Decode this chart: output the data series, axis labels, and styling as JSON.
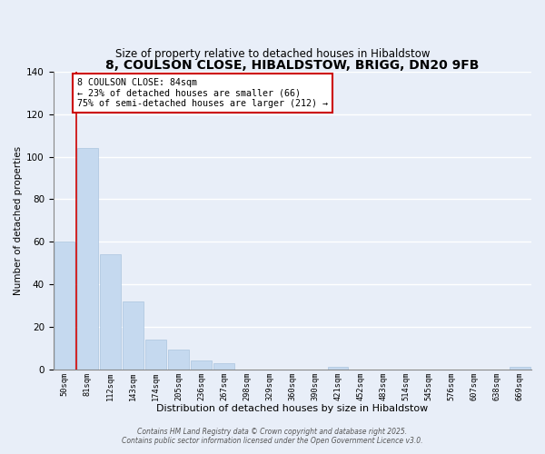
{
  "title": "8, COULSON CLOSE, HIBALDSTOW, BRIGG, DN20 9FB",
  "subtitle": "Size of property relative to detached houses in Hibaldstow",
  "xlabel": "Distribution of detached houses by size in Hibaldstow",
  "ylabel": "Number of detached properties",
  "bin_labels": [
    "50sqm",
    "81sqm",
    "112sqm",
    "143sqm",
    "174sqm",
    "205sqm",
    "236sqm",
    "267sqm",
    "298sqm",
    "329sqm",
    "360sqm",
    "390sqm",
    "421sqm",
    "452sqm",
    "483sqm",
    "514sqm",
    "545sqm",
    "576sqm",
    "607sqm",
    "638sqm",
    "669sqm"
  ],
  "bar_heights": [
    60,
    104,
    54,
    32,
    14,
    9,
    4,
    3,
    0,
    0,
    0,
    0,
    1,
    0,
    0,
    0,
    0,
    0,
    0,
    0,
    1
  ],
  "bar_color": "#c5d9ef",
  "bar_edge_color": "#aac4de",
  "ylim": [
    0,
    140
  ],
  "yticks": [
    0,
    20,
    40,
    60,
    80,
    100,
    120,
    140
  ],
  "annotation_title": "8 COULSON CLOSE: 84sqm",
  "annotation_line1": "← 23% of detached houses are smaller (66)",
  "annotation_line2": "75% of semi-detached houses are larger (212) →",
  "footer_line1": "Contains HM Land Registry data © Crown copyright and database right 2025.",
  "footer_line2": "Contains public sector information licensed under the Open Government Licence v3.0.",
  "background_color": "#e8eef8",
  "plot_bg_color": "#e8eef8",
  "grid_color": "#ffffff",
  "title_fontsize": 10,
  "subtitle_fontsize": 8.5,
  "annotation_box_color": "#ffffff",
  "annotation_box_edge_color": "#cc0000",
  "red_line_color": "#cc0000",
  "red_line_x": 0.5
}
